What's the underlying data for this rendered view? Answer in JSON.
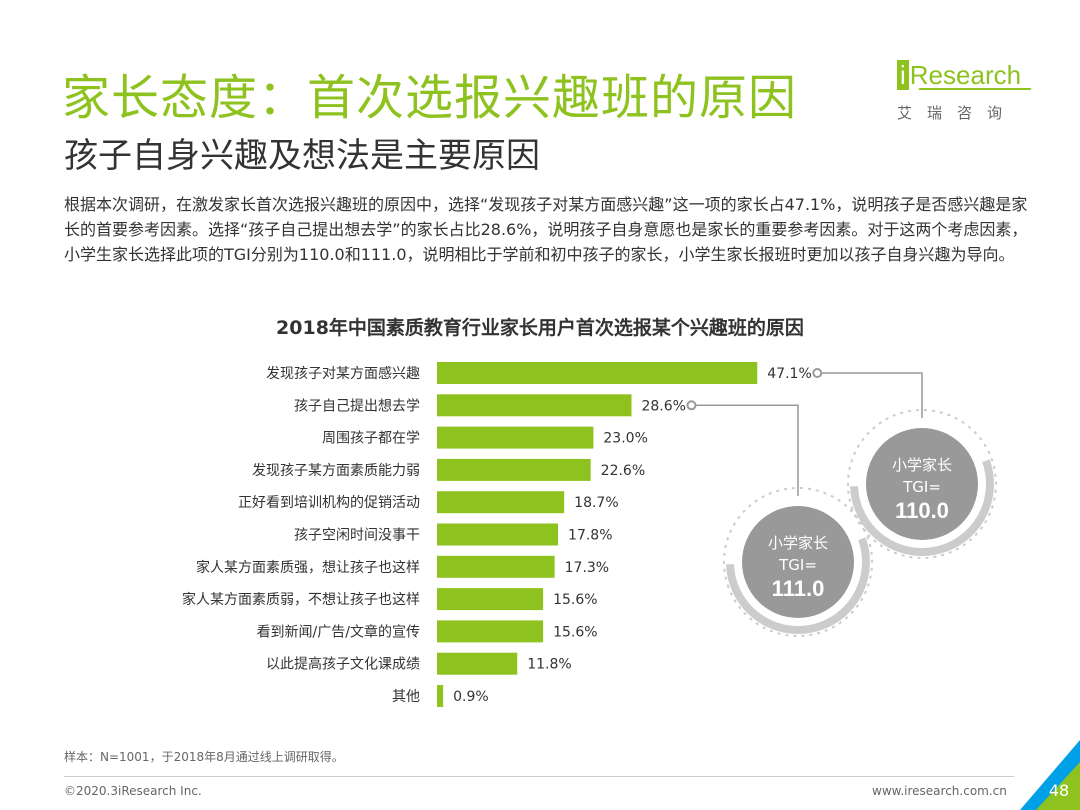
{
  "header": {
    "title": "家长态度：首次选报兴趣班的原因",
    "subtitle": "孩子自身兴趣及想法是主要原因"
  },
  "logo": {
    "brand_prefix": "i",
    "brand_rest": "Research",
    "cn": "艾瑞咨询"
  },
  "description": "根据本次调研，在激发家长首次选报兴趣班的原因中，选择“发现孩子对某方面感兴趣”这一项的家长占47.1%，说明孩子是否感兴趣是家长的首要参考因素。选择“孩子自己提出想去学”的家长占比28.6%，说明孩子自身意愿也是家长的重要参考因素。对于这两个考虑因素，小学生家长选择此项的TGI分别为110.0和111.0，说明相比于学前和初中孩子的家长，小学生家长报班时更加以孩子自身兴趣为导向。",
  "chart_data": {
    "type": "bar",
    "orientation": "horizontal",
    "title": "2018年中国素质教育行业家长用户首次选报某个兴趣班的原因",
    "categories": [
      "发现孩子对某方面感兴趣",
      "孩子自己提出想去学",
      "周围孩子都在学",
      "发现孩子某方面素质能力弱",
      "正好看到培训机构的促销活动",
      "孩子空闲时间没事干",
      "家人某方面素质强，想让孩子也这样",
      "家人某方面素质弱，不想让孩子也这样",
      "看到新闻/广告/文章的宣传",
      "以此提高孩子文化课成绩",
      "其他"
    ],
    "values": [
      47.1,
      28.6,
      23.0,
      22.6,
      18.7,
      17.8,
      17.3,
      15.6,
      15.6,
      11.8,
      0.9
    ],
    "value_labels": [
      "47.1%",
      "28.6%",
      "23.0%",
      "22.6%",
      "18.7%",
      "17.8%",
      "17.3%",
      "15.6%",
      "15.6%",
      "11.8%",
      "0.9%"
    ],
    "bar_color": "#8dc21f",
    "xlim": [
      0,
      50
    ],
    "grid": false,
    "annotations": [
      {
        "for_category": "发现孩子对某方面感兴趣",
        "line1": "小学家长",
        "line2": "TGI=",
        "line3": "110.0"
      },
      {
        "for_category": "孩子自己提出想去学",
        "line1": "小学家长",
        "line2": "TGI=",
        "line3": "111.0"
      }
    ]
  },
  "footer": {
    "note": "样本：N=1001，于2018年8月通过线上调研取得。",
    "copyright": "©2020.3iResearch Inc.",
    "website": "www.iresearch.com.cn",
    "page_number": "48"
  },
  "colors": {
    "accent": "#8dc21f",
    "badge": "#999999",
    "ring": "#cccccc",
    "corner_blue": "#00a0e9"
  }
}
